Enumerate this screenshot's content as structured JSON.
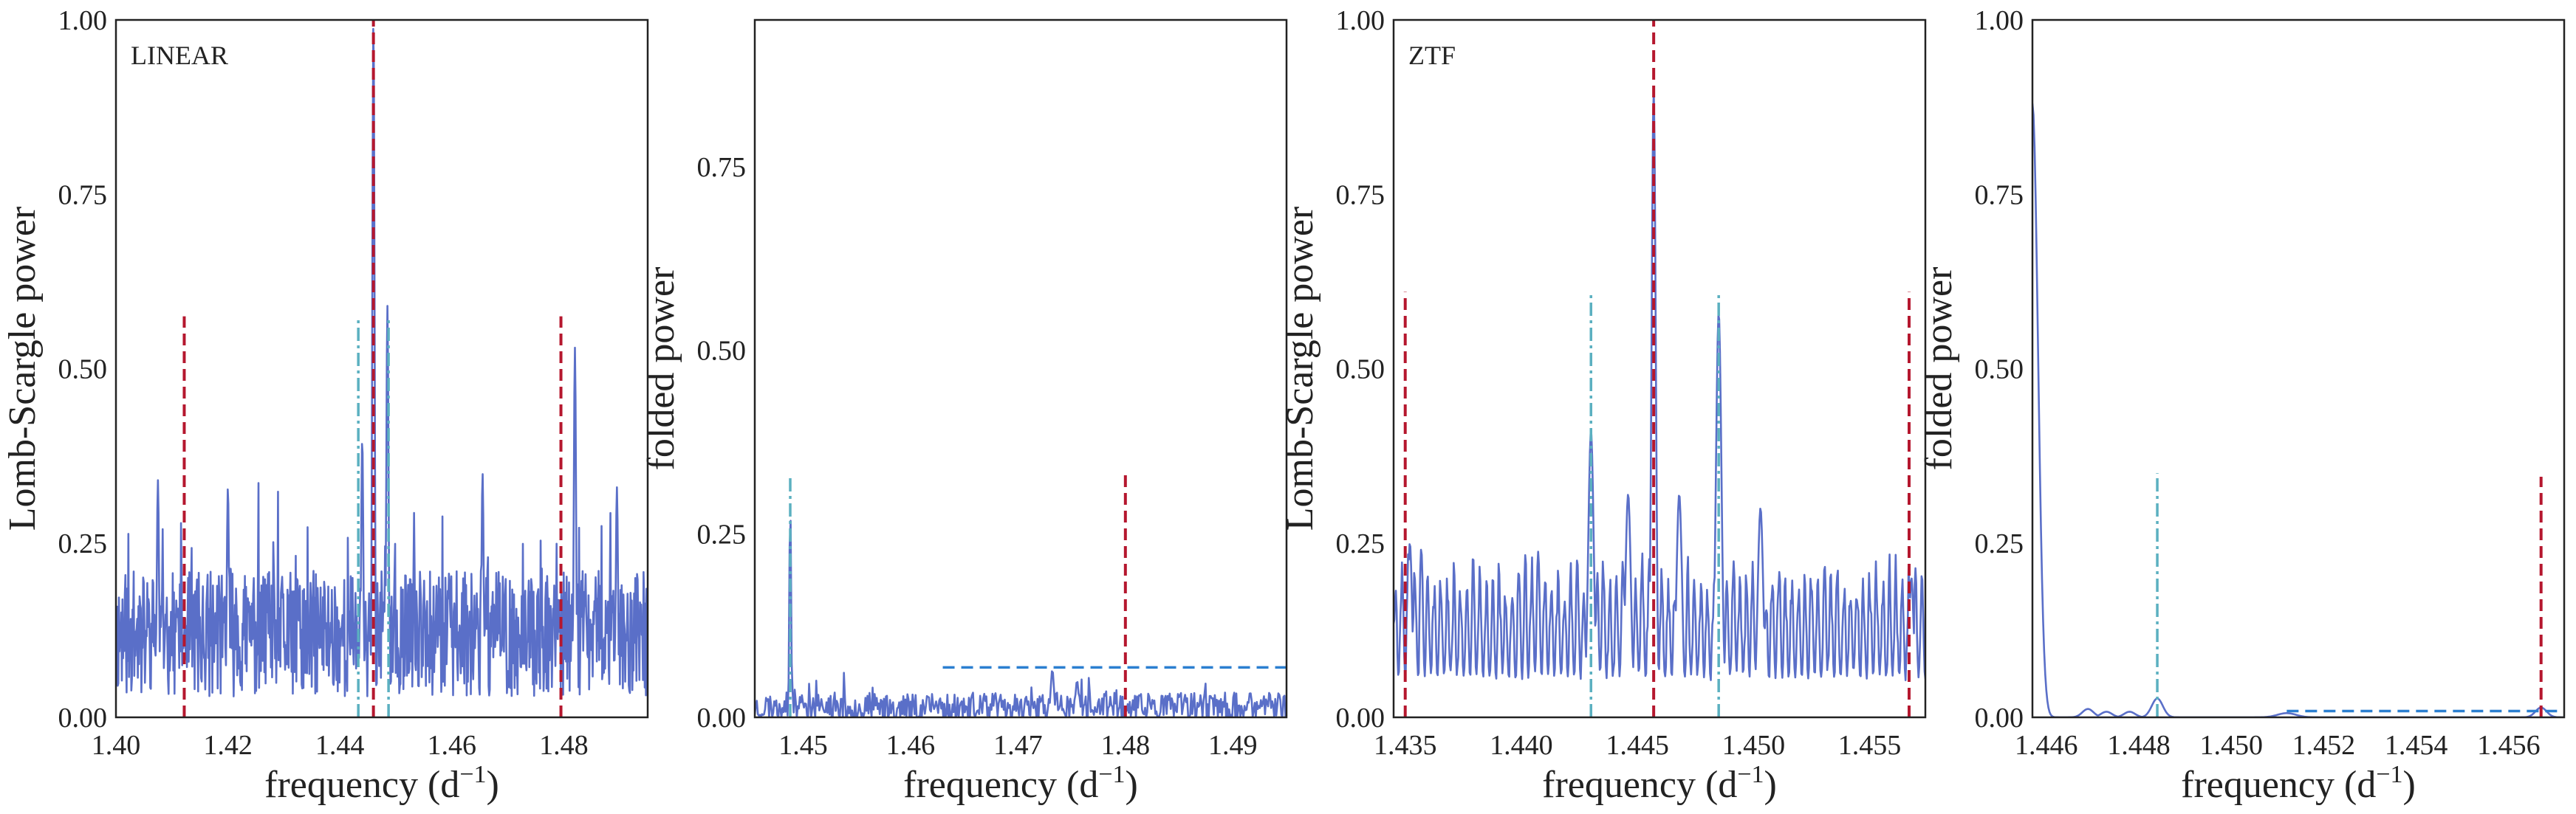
{
  "figure": {
    "panels": [
      {
        "tag": "LINEAR",
        "xlabel": "frequency (d",
        "xlabel_sup": "−1",
        "xlabel_close": ")",
        "ylabel": "Lomb-Scargle power"
      },
      {
        "tag": "",
        "xlabel": "frequency (d",
        "xlabel_sup": "−1",
        "xlabel_close": ")",
        "ylabel": "folded power"
      },
      {
        "tag": "ZTF",
        "xlabel": "frequency (d",
        "xlabel_sup": "−1",
        "xlabel_close": ")",
        "ylabel": "Lomb-Scargle power"
      },
      {
        "tag": "",
        "xlabel": "frequency (d",
        "xlabel_sup": "−1",
        "xlabel_close": ")",
        "ylabel": "folded power"
      }
    ]
  },
  "colors": {
    "spectrum": "#5a6fc8",
    "red_marker": "#b5172e",
    "cyan_marker": "#5bb0c0",
    "threshold": "#2b7fd0",
    "frame": "#222222"
  },
  "chart_data": [
    {
      "type": "line",
      "panel": "LINEAR",
      "xlabel": "frequency (d⁻¹)",
      "ylabel": "Lomb-Scargle power",
      "xlim": [
        1.4,
        1.495
      ],
      "ylim": [
        0,
        1.0
      ],
      "xticks": [
        "1.40",
        "1.42",
        "1.44",
        "1.46",
        "1.48"
      ],
      "xtick_values": [
        1.4,
        1.42,
        1.44,
        1.46,
        1.48
      ],
      "yticks": [
        "0.00",
        "0.25",
        "0.50",
        "0.75",
        "1.00"
      ],
      "ytick_values": [
        0,
        0.25,
        0.5,
        0.75,
        1.0
      ],
      "spectrum": {
        "kind": "noisy",
        "x_start": 1.4,
        "x_end": 1.495,
        "n": 900,
        "base": 0.12,
        "noise": 0.09,
        "seed": 11,
        "peaks": [
          {
            "x": 1.4075,
            "y": 0.34,
            "w": 0.0002
          },
          {
            "x": 1.42,
            "y": 0.33,
            "w": 0.0002
          },
          {
            "x": 1.446,
            "y": 1.0,
            "w": 0.0002
          },
          {
            "x": 1.4485,
            "y": 0.59,
            "w": 0.0002
          },
          {
            "x": 1.444,
            "y": 0.4,
            "w": 0.0002
          },
          {
            "x": 1.4655,
            "y": 0.35,
            "w": 0.0002
          },
          {
            "x": 1.482,
            "y": 0.53,
            "w": 0.0002
          },
          {
            "x": 1.4895,
            "y": 0.33,
            "w": 0.0002
          }
        ]
      },
      "markers": [
        {
          "style": "red-dashed",
          "x": 1.4122,
          "y_top": 0.575
        },
        {
          "style": "red-dashed",
          "x": 1.446,
          "y_top": 1.0
        },
        {
          "style": "red-dashed",
          "x": 1.4795,
          "y_top": 0.575
        },
        {
          "style": "cyan-dashdot",
          "x": 1.4433,
          "y_top": 0.575
        },
        {
          "style": "cyan-dashdot",
          "x": 1.4487,
          "y_top": 0.575
        }
      ],
      "thresholds": []
    },
    {
      "type": "line",
      "panel": "LINEAR folded",
      "xlabel": "frequency (d⁻¹)",
      "ylabel": "folded power",
      "xlim": [
        1.4455,
        1.495
      ],
      "ylim": [
        0,
        0.95
      ],
      "xticks": [
        "1.45",
        "1.46",
        "1.47",
        "1.48",
        "1.49"
      ],
      "xtick_values": [
        1.45,
        1.46,
        1.47,
        1.48,
        1.49
      ],
      "yticks": [
        "0.00",
        "0.25",
        "0.50",
        "0.75"
      ],
      "ytick_values": [
        0,
        0.25,
        0.5,
        0.75
      ],
      "spectrum": {
        "kind": "noisy",
        "x_start": 1.4455,
        "x_end": 1.495,
        "n": 520,
        "base": 0.014,
        "noise": 0.02,
        "seed": 23,
        "peaks": [
          {
            "x": 1.4488,
            "y": 0.3,
            "w": 8e-05
          },
          {
            "x": 1.4732,
            "y": 0.065,
            "w": 0.00015
          },
          {
            "x": 1.4755,
            "y": 0.05,
            "w": 0.00015
          }
        ]
      },
      "markers": [
        {
          "style": "cyan-dashdot",
          "x": 1.4488,
          "y_top": 0.33
        },
        {
          "style": "red-dashed",
          "x": 1.48,
          "y_top": 0.33
        }
      ],
      "thresholds": [
        {
          "y": 0.068,
          "x_start": 1.463,
          "x_end": 1.495
        }
      ]
    },
    {
      "type": "line",
      "panel": "ZTF",
      "xlabel": "frequency (d⁻¹)",
      "ylabel": "Lomb-Scargle power",
      "xlim": [
        1.4345,
        1.4574
      ],
      "ylim": [
        0,
        1.0
      ],
      "xticks": [
        "1.435",
        "1.440",
        "1.445",
        "1.450",
        "1.455"
      ],
      "xtick_values": [
        1.435,
        1.44,
        1.445,
        1.45,
        1.455
      ],
      "yticks": [
        "0.00",
        "0.25",
        "0.50",
        "0.75",
        "1.00"
      ],
      "ytick_values": [
        0,
        0.25,
        0.5,
        0.75,
        1.0
      ],
      "spectrum": {
        "kind": "smooth",
        "x_start": 1.4345,
        "x_end": 1.4574,
        "n": 700,
        "base": 0.11,
        "noise": 0.07,
        "seed": 37,
        "period": 0.00028,
        "peaks": [
          {
            "x": 1.4457,
            "y": 0.9,
            "w": 9e-05
          },
          {
            "x": 1.4485,
            "y": 0.58,
            "w": 0.00012
          },
          {
            "x": 1.443,
            "y": 0.41,
            "w": 0.00012
          },
          {
            "x": 1.4468,
            "y": 0.32,
            "w": 0.00012
          },
          {
            "x": 1.4446,
            "y": 0.32,
            "w": 0.00012
          },
          {
            "x": 1.4503,
            "y": 0.3,
            "w": 0.00012
          },
          {
            "x": 1.4352,
            "y": 0.25,
            "w": 0.0001
          },
          {
            "x": 1.4568,
            "y": 0.2,
            "w": 0.0001
          }
        ]
      },
      "markers": [
        {
          "style": "red-dashed",
          "x": 1.435,
          "y_top": 0.61
        },
        {
          "style": "red-dashed",
          "x": 1.4457,
          "y_top": 1.0
        },
        {
          "style": "red-dashed",
          "x": 1.4567,
          "y_top": 0.61
        },
        {
          "style": "cyan-dashdot",
          "x": 1.443,
          "y_top": 0.61
        },
        {
          "style": "cyan-dashdot",
          "x": 1.4485,
          "y_top": 0.61
        }
      ],
      "thresholds": []
    },
    {
      "type": "line",
      "panel": "ZTF folded",
      "xlabel": "frequency (d⁻¹)",
      "ylabel": "folded power",
      "xlim": [
        1.4457,
        1.4572
      ],
      "ylim": [
        0,
        1.0
      ],
      "xticks": [
        "1.446",
        "1.448",
        "1.450",
        "1.452",
        "1.454",
        "1.456"
      ],
      "xtick_values": [
        1.446,
        1.448,
        1.45,
        1.452,
        1.454,
        1.456
      ],
      "yticks": [
        "0.00",
        "0.25",
        "0.50",
        "0.75",
        "1.00"
      ],
      "ytick_values": [
        0,
        0.25,
        0.5,
        0.75,
        1.0
      ],
      "spectrum": {
        "kind": "clean",
        "x_start": 1.4457,
        "x_end": 1.4572,
        "n": 500,
        "base": 0.0,
        "noise": 0.0,
        "seed": 41,
        "peaks": [
          {
            "x": 1.4457,
            "y": 0.88,
            "w": 0.00012
          },
          {
            "x": 1.4484,
            "y": 0.027,
            "w": 0.00012
          },
          {
            "x": 1.4469,
            "y": 0.012,
            "w": 0.00012
          },
          {
            "x": 1.4473,
            "y": 0.008,
            "w": 0.00012
          },
          {
            "x": 1.4478,
            "y": 0.008,
            "w": 0.00012
          },
          {
            "x": 1.4512,
            "y": 0.006,
            "w": 0.0002
          },
          {
            "x": 1.4567,
            "y": 0.014,
            "w": 0.00012
          }
        ]
      },
      "markers": [
        {
          "style": "cyan-dashdot",
          "x": 1.4484,
          "y_top": 0.35
        },
        {
          "style": "red-dashed",
          "x": 1.4567,
          "y_top": 0.345
        }
      ],
      "thresholds": [
        {
          "y": 0.009,
          "x_start": 1.4512,
          "x_end": 1.4572
        }
      ]
    }
  ]
}
